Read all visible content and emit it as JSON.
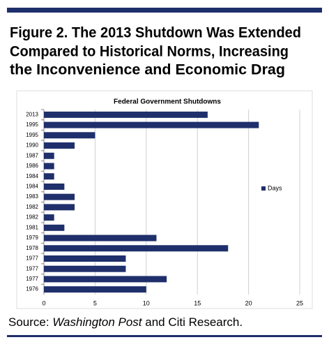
{
  "figure_title": [
    "Figure 2. The 2013 Shutdown Was Extended",
    "Compared to Historical Norms, Increasing",
    "the Inconvenience and Economic Drag"
  ],
  "source": [
    "Source: ",
    "Washington Post",
    " and Citi Research."
  ],
  "chart_data": {
    "type": "hbar",
    "title": "Federal Government Shutdowns",
    "categories": [
      "2013",
      "1995",
      "1995",
      "1990",
      "1987",
      "1986",
      "1984",
      "1984",
      "1983",
      "1982",
      "1982",
      "1981",
      "1979",
      "1978",
      "1977",
      "1977",
      "1977",
      "1976"
    ],
    "series": [
      {
        "name": "Days",
        "color": "#1f2f6b",
        "values": [
          16,
          21,
          5,
          3,
          1,
          1,
          1,
          2,
          3,
          3,
          1,
          2,
          11,
          18,
          8,
          8,
          12,
          10
        ]
      }
    ],
    "xlim": [
      0,
      25
    ],
    "xticks": [
      0,
      5,
      10,
      15,
      20,
      25
    ],
    "grid": true,
    "legend": "right"
  }
}
